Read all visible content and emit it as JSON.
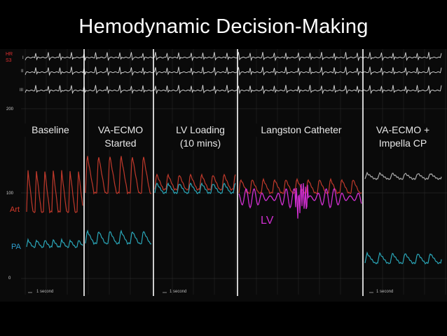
{
  "title": "Hemodynamic Decision-Making",
  "monitor": {
    "hr_label": "HR",
    "spo2_label": "S3",
    "leads": [
      "I",
      "II",
      "III"
    ],
    "scale_values": [
      "200",
      "100",
      "0"
    ],
    "art_label": "Art",
    "pa_label": "PA",
    "lv_label": "LV",
    "time_scale": "1 second"
  },
  "panels": [
    {
      "label_lines": [
        "Baseline"
      ]
    },
    {
      "label_lines": [
        "VA-ECMO",
        "Started"
      ]
    },
    {
      "label_lines": [
        "LV Loading",
        "(10 mins)"
      ]
    },
    {
      "label_lines": [
        "Langston Catheter"
      ]
    },
    {
      "label_lines": [
        "VA-ECMO +",
        "Impella CP"
      ]
    }
  ],
  "colors": {
    "art": "#c0392b",
    "pa": "#2aa6b8",
    "lv": "#d22fd2",
    "ecg": "#d9d9d9",
    "divider": "#ffffff"
  }
}
